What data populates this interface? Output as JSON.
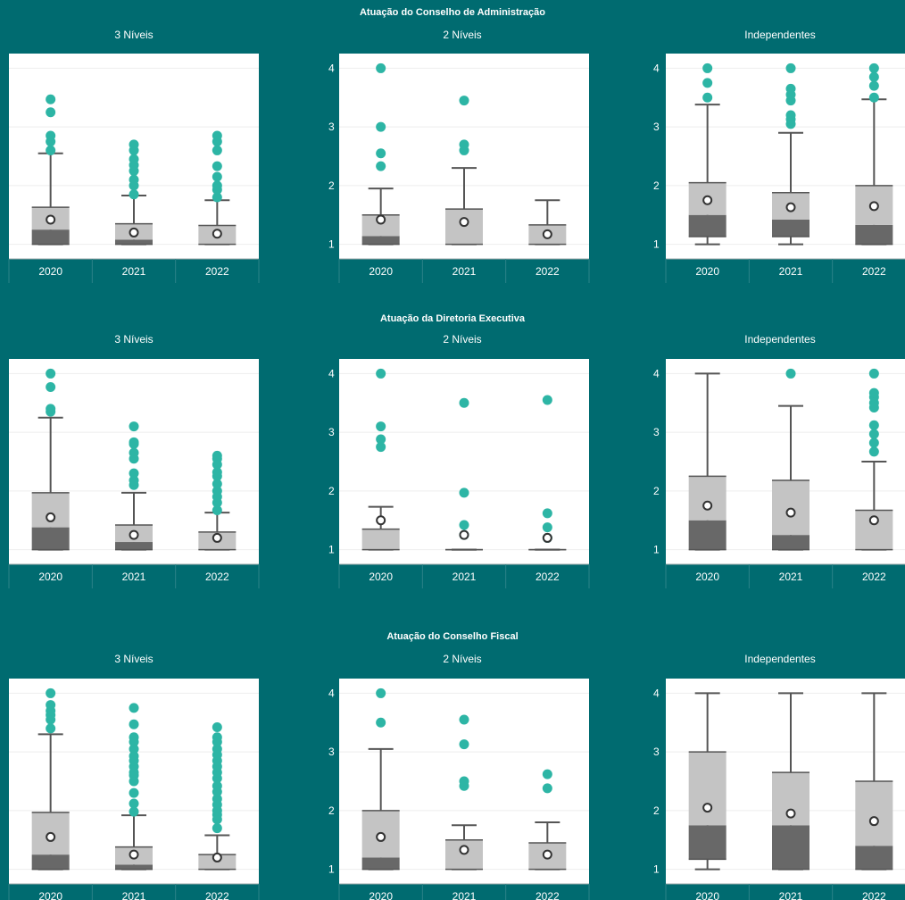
{
  "sections": [
    {
      "title": "Atuação do Conselho de Administração"
    },
    {
      "title": "Atuação da Diretoria Executiva"
    },
    {
      "title": "Atuação do Conselho Fiscal"
    }
  ],
  "panel_titles": [
    "3 Níveis",
    "2 Níveis",
    "Independentes"
  ],
  "colors": {
    "background": "#006b70",
    "plot_background": "#ffffff",
    "box_upper": "#c4c4c4",
    "box_lower": "#686868",
    "whisker": "#555555",
    "outlier": "#2db5a5",
    "mean_marker": "#ffffff"
  },
  "chart_data": [
    {
      "type": "box",
      "section": "Atuação do Conselho de Administração",
      "title": "3 Níveis",
      "categories": [
        "2020",
        "2021",
        "2022"
      ],
      "ylim": [
        0.75,
        4.25
      ],
      "yticks": [
        1,
        2,
        3,
        4
      ],
      "ytick_labels_visible": false,
      "boxes": [
        {
          "min": 1.0,
          "q1": 1.0,
          "median": 1.25,
          "q3": 1.63,
          "max": 2.55,
          "mean": 1.42,
          "outliers": [
            2.6,
            2.75,
            2.85,
            3.25,
            3.47
          ]
        },
        {
          "min": 1.0,
          "q1": 1.0,
          "median": 1.08,
          "q3": 1.35,
          "max": 1.83,
          "mean": 1.2,
          "outliers": [
            1.85,
            2.0,
            2.1,
            2.25,
            2.35,
            2.45,
            2.6,
            2.7
          ]
        },
        {
          "min": 1.0,
          "q1": 1.0,
          "median": 1.0,
          "q3": 1.32,
          "max": 1.75,
          "mean": 1.18,
          "outliers": [
            1.8,
            1.93,
            2.0,
            2.15,
            2.33,
            2.6,
            2.75,
            2.85
          ]
        }
      ]
    },
    {
      "type": "box",
      "section": "Atuação do Conselho de Administração",
      "title": "2 Níveis",
      "categories": [
        "2020",
        "2021",
        "2022"
      ],
      "ylim": [
        0.75,
        4.25
      ],
      "yticks": [
        1,
        2,
        3,
        4
      ],
      "boxes": [
        {
          "min": 1.0,
          "q1": 1.0,
          "median": 1.14,
          "q3": 1.5,
          "max": 1.95,
          "mean": 1.42,
          "outliers": [
            2.33,
            2.55,
            3.0,
            4.0
          ]
        },
        {
          "min": 1.0,
          "q1": 1.0,
          "median": 1.0,
          "q3": 1.6,
          "max": 2.3,
          "mean": 1.38,
          "outliers": [
            2.6,
            2.7,
            3.45
          ]
        },
        {
          "min": 1.0,
          "q1": 1.0,
          "median": 1.0,
          "q3": 1.33,
          "max": 1.75,
          "mean": 1.17,
          "outliers": []
        }
      ]
    },
    {
      "type": "box",
      "section": "Atuação do Conselho de Administração",
      "title": "Independentes",
      "categories": [
        "2020",
        "2021",
        "2022"
      ],
      "ylim": [
        0.75,
        4.25
      ],
      "yticks": [
        1,
        2,
        3,
        4
      ],
      "boxes": [
        {
          "min": 1.0,
          "q1": 1.13,
          "median": 1.5,
          "q3": 2.05,
          "max": 3.38,
          "mean": 1.75,
          "outliers": [
            3.5,
            3.75,
            4.0
          ]
        },
        {
          "min": 1.0,
          "q1": 1.13,
          "median": 1.42,
          "q3": 1.88,
          "max": 2.9,
          "mean": 1.63,
          "outliers": [
            3.05,
            3.13,
            3.2,
            3.45,
            3.55,
            3.65,
            4.0
          ]
        },
        {
          "min": 1.0,
          "q1": 1.0,
          "median": 1.33,
          "q3": 2.0,
          "max": 3.47,
          "mean": 1.65,
          "outliers": [
            3.5,
            3.7,
            3.85,
            4.0
          ]
        }
      ]
    },
    {
      "type": "box",
      "section": "Atuação da Diretoria Executiva",
      "title": "3 Níveis",
      "categories": [
        "2020",
        "2021",
        "2022"
      ],
      "ylim": [
        0.75,
        4.25
      ],
      "yticks": [
        1,
        2,
        3,
        4
      ],
      "ytick_labels_visible": false,
      "boxes": [
        {
          "min": 1.0,
          "q1": 1.0,
          "median": 1.38,
          "q3": 1.97,
          "max": 3.25,
          "mean": 1.55,
          "outliers": [
            3.35,
            3.4,
            3.77,
            4.0
          ]
        },
        {
          "min": 1.0,
          "q1": 1.0,
          "median": 1.13,
          "q3": 1.42,
          "max": 1.97,
          "mean": 1.25,
          "outliers": [
            2.1,
            2.18,
            2.3,
            2.55,
            2.65,
            2.8,
            2.83,
            3.1
          ]
        },
        {
          "min": 1.0,
          "q1": 1.0,
          "median": 1.0,
          "q3": 1.3,
          "max": 1.63,
          "mean": 1.2,
          "outliers": [
            1.67,
            1.8,
            1.9,
            2.0,
            2.12,
            2.25,
            2.32,
            2.45,
            2.55,
            2.6
          ]
        }
      ]
    },
    {
      "type": "box",
      "section": "Atuação da Diretoria Executiva",
      "title": "2 Níveis",
      "categories": [
        "2020",
        "2021",
        "2022"
      ],
      "ylim": [
        0.75,
        4.25
      ],
      "yticks": [
        1,
        2,
        3,
        4
      ],
      "boxes": [
        {
          "min": 1.0,
          "q1": 1.0,
          "median": 1.0,
          "q3": 1.35,
          "max": 1.73,
          "mean": 1.5,
          "outliers": [
            2.75,
            2.88,
            3.1,
            4.0
          ]
        },
        {
          "min": 1.0,
          "q1": 1.0,
          "median": 1.0,
          "q3": 1.0,
          "max": 1.0,
          "mean": 1.25,
          "outliers": [
            1.25,
            1.42,
            1.97,
            3.5
          ]
        },
        {
          "min": 1.0,
          "q1": 1.0,
          "median": 1.0,
          "q3": 1.0,
          "max": 1.0,
          "mean": 1.2,
          "outliers": [
            1.2,
            1.38,
            1.62,
            3.55
          ]
        }
      ]
    },
    {
      "type": "box",
      "section": "Atuação da Diretoria Executiva",
      "title": "Independentes",
      "categories": [
        "2020",
        "2021",
        "2022"
      ],
      "ylim": [
        0.75,
        4.25
      ],
      "yticks": [
        1,
        2,
        3,
        4
      ],
      "boxes": [
        {
          "min": 1.0,
          "q1": 1.0,
          "median": 1.5,
          "q3": 2.25,
          "max": 4.0,
          "mean": 1.75,
          "outliers": []
        },
        {
          "min": 1.0,
          "q1": 1.0,
          "median": 1.25,
          "q3": 2.18,
          "max": 3.45,
          "mean": 1.63,
          "outliers": [
            4.0
          ]
        },
        {
          "min": 1.0,
          "q1": 1.0,
          "median": 1.0,
          "q3": 1.67,
          "max": 2.5,
          "mean": 1.5,
          "outliers": [
            2.67,
            2.82,
            2.97,
            3.12,
            3.42,
            3.5,
            3.6,
            3.67,
            4.0
          ]
        }
      ]
    },
    {
      "type": "box",
      "section": "Atuação do Conselho Fiscal",
      "title": "3 Níveis",
      "categories": [
        "2020",
        "2021",
        "2022"
      ],
      "ylim": [
        0.75,
        4.25
      ],
      "yticks": [
        1,
        2,
        3,
        4
      ],
      "ytick_labels_visible": false,
      "boxes": [
        {
          "min": 1.0,
          "q1": 1.0,
          "median": 1.25,
          "q3": 1.97,
          "max": 3.3,
          "mean": 1.55,
          "outliers": [
            3.4,
            3.55,
            3.63,
            3.7,
            3.8,
            4.0
          ]
        },
        {
          "min": 1.0,
          "q1": 1.0,
          "median": 1.08,
          "q3": 1.38,
          "max": 1.92,
          "mean": 1.25,
          "outliers": [
            1.98,
            2.12,
            2.3,
            2.5,
            2.6,
            2.65,
            2.75,
            2.85,
            2.93,
            3.05,
            3.17,
            3.25,
            3.47,
            3.75
          ]
        },
        {
          "min": 1.0,
          "q1": 1.0,
          "median": 1.0,
          "q3": 1.25,
          "max": 1.58,
          "mean": 1.2,
          "outliers": [
            1.7,
            1.85,
            1.93,
            2.0,
            2.1,
            2.2,
            2.32,
            2.42,
            2.55,
            2.65,
            2.75,
            2.85,
            2.95,
            3.05,
            3.17,
            3.25,
            3.42
          ]
        }
      ]
    },
    {
      "type": "box",
      "section": "Atuação do Conselho Fiscal",
      "title": "2 Níveis",
      "categories": [
        "2020",
        "2021",
        "2022"
      ],
      "ylim": [
        0.75,
        4.25
      ],
      "yticks": [
        1,
        2,
        3,
        4
      ],
      "boxes": [
        {
          "min": 1.0,
          "q1": 1.0,
          "median": 1.2,
          "q3": 2.0,
          "max": 3.05,
          "mean": 1.55,
          "outliers": [
            3.5,
            4.0
          ]
        },
        {
          "min": 1.0,
          "q1": 1.0,
          "median": 1.0,
          "q3": 1.5,
          "max": 1.75,
          "mean": 1.33,
          "outliers": [
            2.42,
            2.5,
            3.13,
            3.55
          ]
        },
        {
          "min": 1.0,
          "q1": 1.0,
          "median": 1.0,
          "q3": 1.45,
          "max": 1.8,
          "mean": 1.25,
          "outliers": [
            2.38,
            2.62
          ]
        }
      ]
    },
    {
      "type": "box",
      "section": "Atuação do Conselho Fiscal",
      "title": "Independentes",
      "categories": [
        "2020",
        "2021",
        "2022"
      ],
      "ylim": [
        0.75,
        4.25
      ],
      "yticks": [
        1,
        2,
        3,
        4
      ],
      "boxes": [
        {
          "min": 1.0,
          "q1": 1.17,
          "median": 1.75,
          "q3": 3.0,
          "max": 4.0,
          "mean": 2.05,
          "outliers": []
        },
        {
          "min": 1.0,
          "q1": 1.0,
          "median": 1.75,
          "q3": 2.65,
          "max": 4.0,
          "mean": 1.95,
          "outliers": []
        },
        {
          "min": 1.0,
          "q1": 1.0,
          "median": 1.4,
          "q3": 2.5,
          "max": 4.0,
          "mean": 1.82,
          "outliers": []
        }
      ]
    }
  ]
}
